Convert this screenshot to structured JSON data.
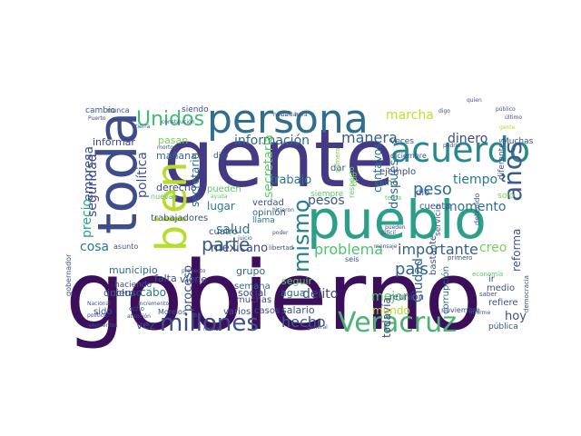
{
  "word_cloud": {
    "words": [
      {
        "text": "gobierno",
        "color": "#3b0f5c"
      },
      {
        "text": "gente",
        "color": "#443a83"
      },
      {
        "text": "pueblo",
        "color": "#2c9f89"
      },
      {
        "text": "persona",
        "color": "#2e6e8e"
      },
      {
        "text": "toda",
        "color": "#3c4d8a"
      },
      {
        "text": "bien",
        "color": "#b6dd2b"
      },
      {
        "text": "acuerdo",
        "color": "#27888e"
      },
      {
        "text": "años",
        "color": "#3b5c8b"
      },
      {
        "text": "Veracruz",
        "color": "#4bb272"
      },
      {
        "text": "millones",
        "color": "#3d4f8a"
      },
      {
        "text": "mismo",
        "color": "#27808e"
      },
      {
        "text": "Unidos",
        "color": "#3fbc73"
      },
      {
        "text": "parte",
        "color": "#355f8d"
      },
      {
        "text": "peso",
        "color": "#2e6f8e"
      },
      {
        "text": "país",
        "color": "#33638d"
      },
      {
        "text": "hecho",
        "color": "#355e8d"
      },
      {
        "text": "problema",
        "color": "#4ec36b"
      },
      {
        "text": "importante",
        "color": "#34608d"
      },
      {
        "text": "información",
        "color": "#2f6b8e"
      },
      {
        "text": "manera",
        "color": "#355f8d"
      },
      {
        "text": "dinero",
        "color": "#3e4989"
      },
      {
        "text": "marcha",
        "color": "#c0df25"
      },
      {
        "text": "tiempo",
        "color": "#2a788e"
      },
      {
        "text": "momento",
        "color": "#2d708e"
      },
      {
        "text": "salud",
        "color": "#2c738e"
      },
      {
        "text": "seguridad",
        "color": "#414487"
      },
      {
        "text": "empresa",
        "color": "#3b528b"
      },
      {
        "text": "precio",
        "color": "#22a884"
      },
      {
        "text": "cosa",
        "color": "#2a788e"
      },
      {
        "text": "política",
        "color": "#3b528b"
      },
      {
        "text": "secretaría",
        "color": "#5ec962"
      },
      {
        "text": "secretario",
        "color": "#31688e"
      },
      {
        "text": "mexicano",
        "color": "#3e4989"
      },
      {
        "text": "trabajo",
        "color": "#2a788e"
      },
      {
        "text": "pesos",
        "color": "#3b528b"
      },
      {
        "text": "Ciudad",
        "color": "#31688e"
      },
      {
        "text": "mejor",
        "color": "#5ec962"
      },
      {
        "text": "creo",
        "color": "#7ad151"
      },
      {
        "text": "hoy",
        "color": "#3b528b"
      },
      {
        "text": "proceso",
        "color": "#3b528b"
      },
      {
        "text": "todavía",
        "color": "#414487"
      },
      {
        "text": "delito",
        "color": "#3e4989"
      },
      {
        "text": "mundo",
        "color": "#b5de2b"
      },
      {
        "text": "vez",
        "color": "#3b528b"
      },
      {
        "text": "cabo",
        "color": "#2a788e"
      },
      {
        "text": "después",
        "color": "#31688e"
      },
      {
        "text": "centavos",
        "color": "#2c728e"
      },
      {
        "text": "lugar",
        "color": "#2a788e"
      },
      {
        "text": "reforma",
        "color": "#3b528b"
      },
      {
        "text": "municipio",
        "color": "#31688e"
      },
      {
        "text": "incluso",
        "color": "#3b528b"
      },
      {
        "text": "informar",
        "color": "#3e4989"
      },
      {
        "text": "pasan",
        "color": "#7ad151"
      },
      {
        "text": "mañana",
        "color": "#31688e"
      },
      {
        "text": "derecho",
        "color": "#3e4989"
      },
      {
        "text": "falta",
        "color": "#3b528b"
      },
      {
        "text": "viene",
        "color": "#3e4989"
      },
      {
        "text": "grupo",
        "color": "#31688e"
      },
      {
        "text": "social",
        "color": "#3e4989"
      },
      {
        "text": "agua",
        "color": "#31688e"
      },
      {
        "text": "seguir",
        "color": "#5ec962"
      },
      {
        "text": "semana",
        "color": "#31688e"
      },
      {
        "text": "salario",
        "color": "#3b528b"
      },
      {
        "text": "casos",
        "color": "#3b528b"
      },
      {
        "text": "varios",
        "color": "#3b528b"
      },
      {
        "text": "muchas",
        "color": "#3e4989"
      },
      {
        "text": "quiero",
        "color": "#3b528b"
      },
      {
        "text": "sido",
        "color": "#3b528b"
      },
      {
        "text": "trabajadores",
        "color": "#3b528b"
      },
      {
        "text": "cuatro",
        "color": "#3b528b"
      },
      {
        "text": "verdad",
        "color": "#3b528b"
      },
      {
        "text": "opinión",
        "color": "#31688e"
      },
      {
        "text": "llama",
        "color": "#2a788e"
      },
      {
        "text": "pueden",
        "color": "#5ec962"
      },
      {
        "text": "dar",
        "color": "#3b528b"
      },
      {
        "text": "sino",
        "color": "#31688e"
      },
      {
        "text": "ejemplo",
        "color": "#3e4989"
      },
      {
        "text": "dio",
        "color": "#3b528b"
      },
      {
        "text": "cuenta",
        "color": "#3b528b"
      },
      {
        "text": "servicio",
        "color": "#31688e"
      },
      {
        "text": "reunión",
        "color": "#3b528b"
      },
      {
        "text": "refiere",
        "color": "#3b528b"
      },
      {
        "text": "medio",
        "color": "#3b528b"
      },
      {
        "text": "ir",
        "color": "#3b528b"
      },
      {
        "text": "corrupción",
        "color": "#31688e"
      },
      {
        "text": "noviembre",
        "color": "#3b528b"
      },
      {
        "text": "pública",
        "color": "#3b528b"
      },
      {
        "text": "Muchas",
        "color": "#3b528b"
      },
      {
        "text": "veces",
        "color": "#3b528b"
      },
      {
        "text": "diciembre",
        "color": "#3b528b"
      },
      {
        "text": "cambio",
        "color": "#3b528b"
      },
      {
        "text": "nunca",
        "color": "#3b528b"
      },
      {
        "text": "siendo",
        "color": "#3b528b"
      },
      {
        "text": "Morelos",
        "color": "#3b528b"
      },
      {
        "text": "ocho",
        "color": "#3b528b"
      },
      {
        "text": "asunto",
        "color": "#3b528b"
      },
      {
        "text": "gobernador",
        "color": "#3b528b"
      },
      {
        "text": "haciendo",
        "color": "#3b528b"
      },
      {
        "text": "solo",
        "color": "#7ad151"
      },
      {
        "text": "dijo",
        "color": "#3b528b"
      },
      {
        "text": "siempre",
        "color": "#5ec962"
      },
      {
        "text": "primera",
        "color": "#7ad151"
      },
      {
        "text": "ayuda",
        "color": "#5ec962"
      },
      {
        "text": "nuevas",
        "color": "#5ec962"
      },
      {
        "text": "tema",
        "color": "#5ec962"
      },
      {
        "text": "economía",
        "color": "#5ec962"
      },
      {
        "text": "libertad",
        "color": "#3b528b"
      },
      {
        "text": "seis",
        "color": "#3b528b"
      },
      {
        "text": "mensaje",
        "color": "#3b528b"
      },
      {
        "text": "saber",
        "color": "#3b528b"
      },
      {
        "text": "informe",
        "color": "#3b528b"
      },
      {
        "text": "gente",
        "color": "#b5de2b"
      },
      {
        "text": "incremento",
        "color": "#3b528b"
      },
      {
        "text": "proyecto",
        "color": "#3b528b"
      },
      {
        "text": "Nacional",
        "color": "#3b528b"
      },
      {
        "text": "político",
        "color": "#3b528b"
      },
      {
        "text": "Puerto",
        "color": "#3b528b"
      },
      {
        "text": "pueden",
        "color": "#3b528b"
      },
      {
        "text": "último",
        "color": "#3b528b"
      },
      {
        "text": "público",
        "color": "#3b528b"
      },
      {
        "text": "tierra",
        "color": "#3b528b"
      },
      {
        "text": "constitución",
        "color": "#3b528b"
      },
      {
        "text": "podría",
        "color": "#3b528b"
      },
      {
        "text": "hicieron",
        "color": "#3b528b"
      },
      {
        "text": "cuidar",
        "color": "#3b528b"
      },
      {
        "text": "juicio",
        "color": "#3b528b"
      },
      {
        "text": "buen",
        "color": "#3b528b"
      },
      {
        "text": "digo",
        "color": "#3b528b"
      },
      {
        "text": "iba",
        "color": "#3b528b"
      },
      {
        "text": "menos",
        "color": "#3b528b"
      },
      {
        "text": "general",
        "color": "#3b528b"
      },
      {
        "text": "atención",
        "color": "#3b528b"
      },
      {
        "text": "elementos",
        "color": "#3b528b"
      },
      {
        "text": "quien",
        "color": "#3b528b"
      },
      {
        "text": "difícil",
        "color": "#3b528b"
      },
      {
        "text": "respecto",
        "color": "#5ec962"
      },
      {
        "text": "tipo",
        "color": "#7ad151"
      },
      {
        "text": "detenido",
        "color": "#3b528b"
      },
      {
        "text": "primero",
        "color": "#3b528b"
      },
      {
        "text": "diferentes",
        "color": "#3b528b"
      },
      {
        "text": "bastante",
        "color": "#3b528b"
      },
      {
        "text": "mortos",
        "color": "#3b528b"
      },
      {
        "text": "democracia",
        "color": "#3b528b"
      },
      {
        "text": "hacia",
        "color": "#3b528b"
      },
      {
        "text": "hora",
        "color": "#3b528b"
      },
      {
        "text": "poder",
        "color": "#3b528b"
      }
    ]
  }
}
